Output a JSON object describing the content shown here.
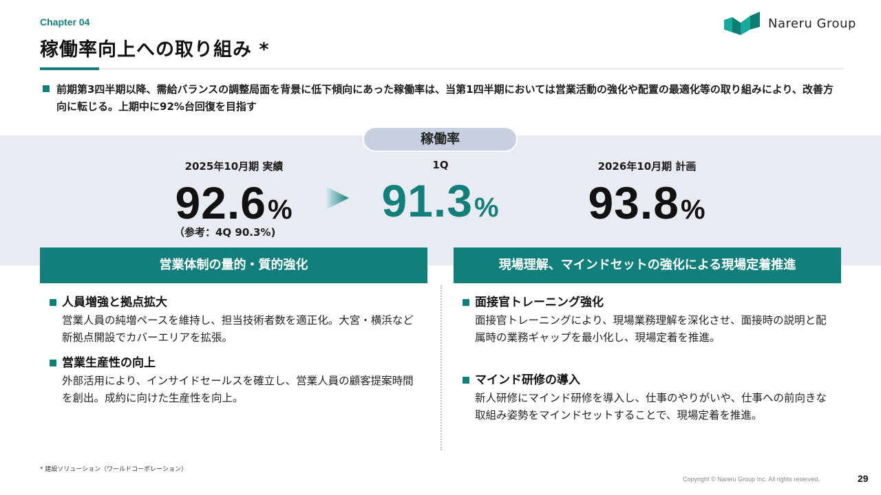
{
  "header": {
    "chapter": "Chapter 04",
    "title": "稼働率向上への取り組み *",
    "logo_text": "Nareru Group"
  },
  "lead": "前期第3四半期以降、需給バランスの調整局面を背景に低下傾向にあった稼働率は、当第1四半期においては営業活動の強化や配置の最適化等の取り組みにより、改善方向に転じる。上期中に92%台回復を目指す",
  "summary": {
    "pill_label": "稼働率",
    "metrics": [
      {
        "label": "2025年10月期 実績",
        "value": "92.6",
        "unit": "%",
        "color": "#111111"
      },
      {
        "label": "1Q",
        "value": "91.3",
        "unit": "%",
        "color": "#137f7a"
      },
      {
        "label": "2026年10月期 計画",
        "value": "93.8",
        "unit": "%",
        "color": "#111111"
      }
    ],
    "note": "（参考：4Q 90.3%)"
  },
  "left_column": {
    "heading": "営業体制の量的・質的強化",
    "items": [
      {
        "title": "人員増強と拠点拡大",
        "body": "営業人員の純増ペースを維持し、担当技術者数を適正化。大宮・横浜など新拠点開設でカバーエリアを拡張。"
      },
      {
        "title": "営業生産性の向上",
        "body": "外部活用により、インサイドセールスを確立し、営業人員の顧客提案時間を創出。成約に向けた生産性を向上。"
      }
    ]
  },
  "right_column": {
    "heading": "現場理解、マインドセットの強化による現場定着推進",
    "items": [
      {
        "title": "面接官トレーニング強化",
        "body": "面接官トレーニングにより、現場業務理解を深化させ、面接時の説明と配属時の業務ギャップを最小化し、現場定着を推進。"
      },
      {
        "title": "マインド研修の導入",
        "body": "新人研修にマインド研修を導入し、仕事のやりがいや、仕事への前向きな取組み姿勢をマインドセットすることで、現場定着を推進。"
      }
    ]
  },
  "footer": {
    "footnote": "* 建設ソリューション（ワールドコーポレーション）",
    "copyright": "Copyright © Nareru Group Inc. All rights reserved.",
    "page_number": "29"
  },
  "colors": {
    "accent": "#137f7a",
    "band": "#e8ecf2",
    "pill": "#c8d0e0"
  },
  "icons": [
    "nareru-logo-icon",
    "arrow-right-icon",
    "square-bullet-icon"
  ]
}
